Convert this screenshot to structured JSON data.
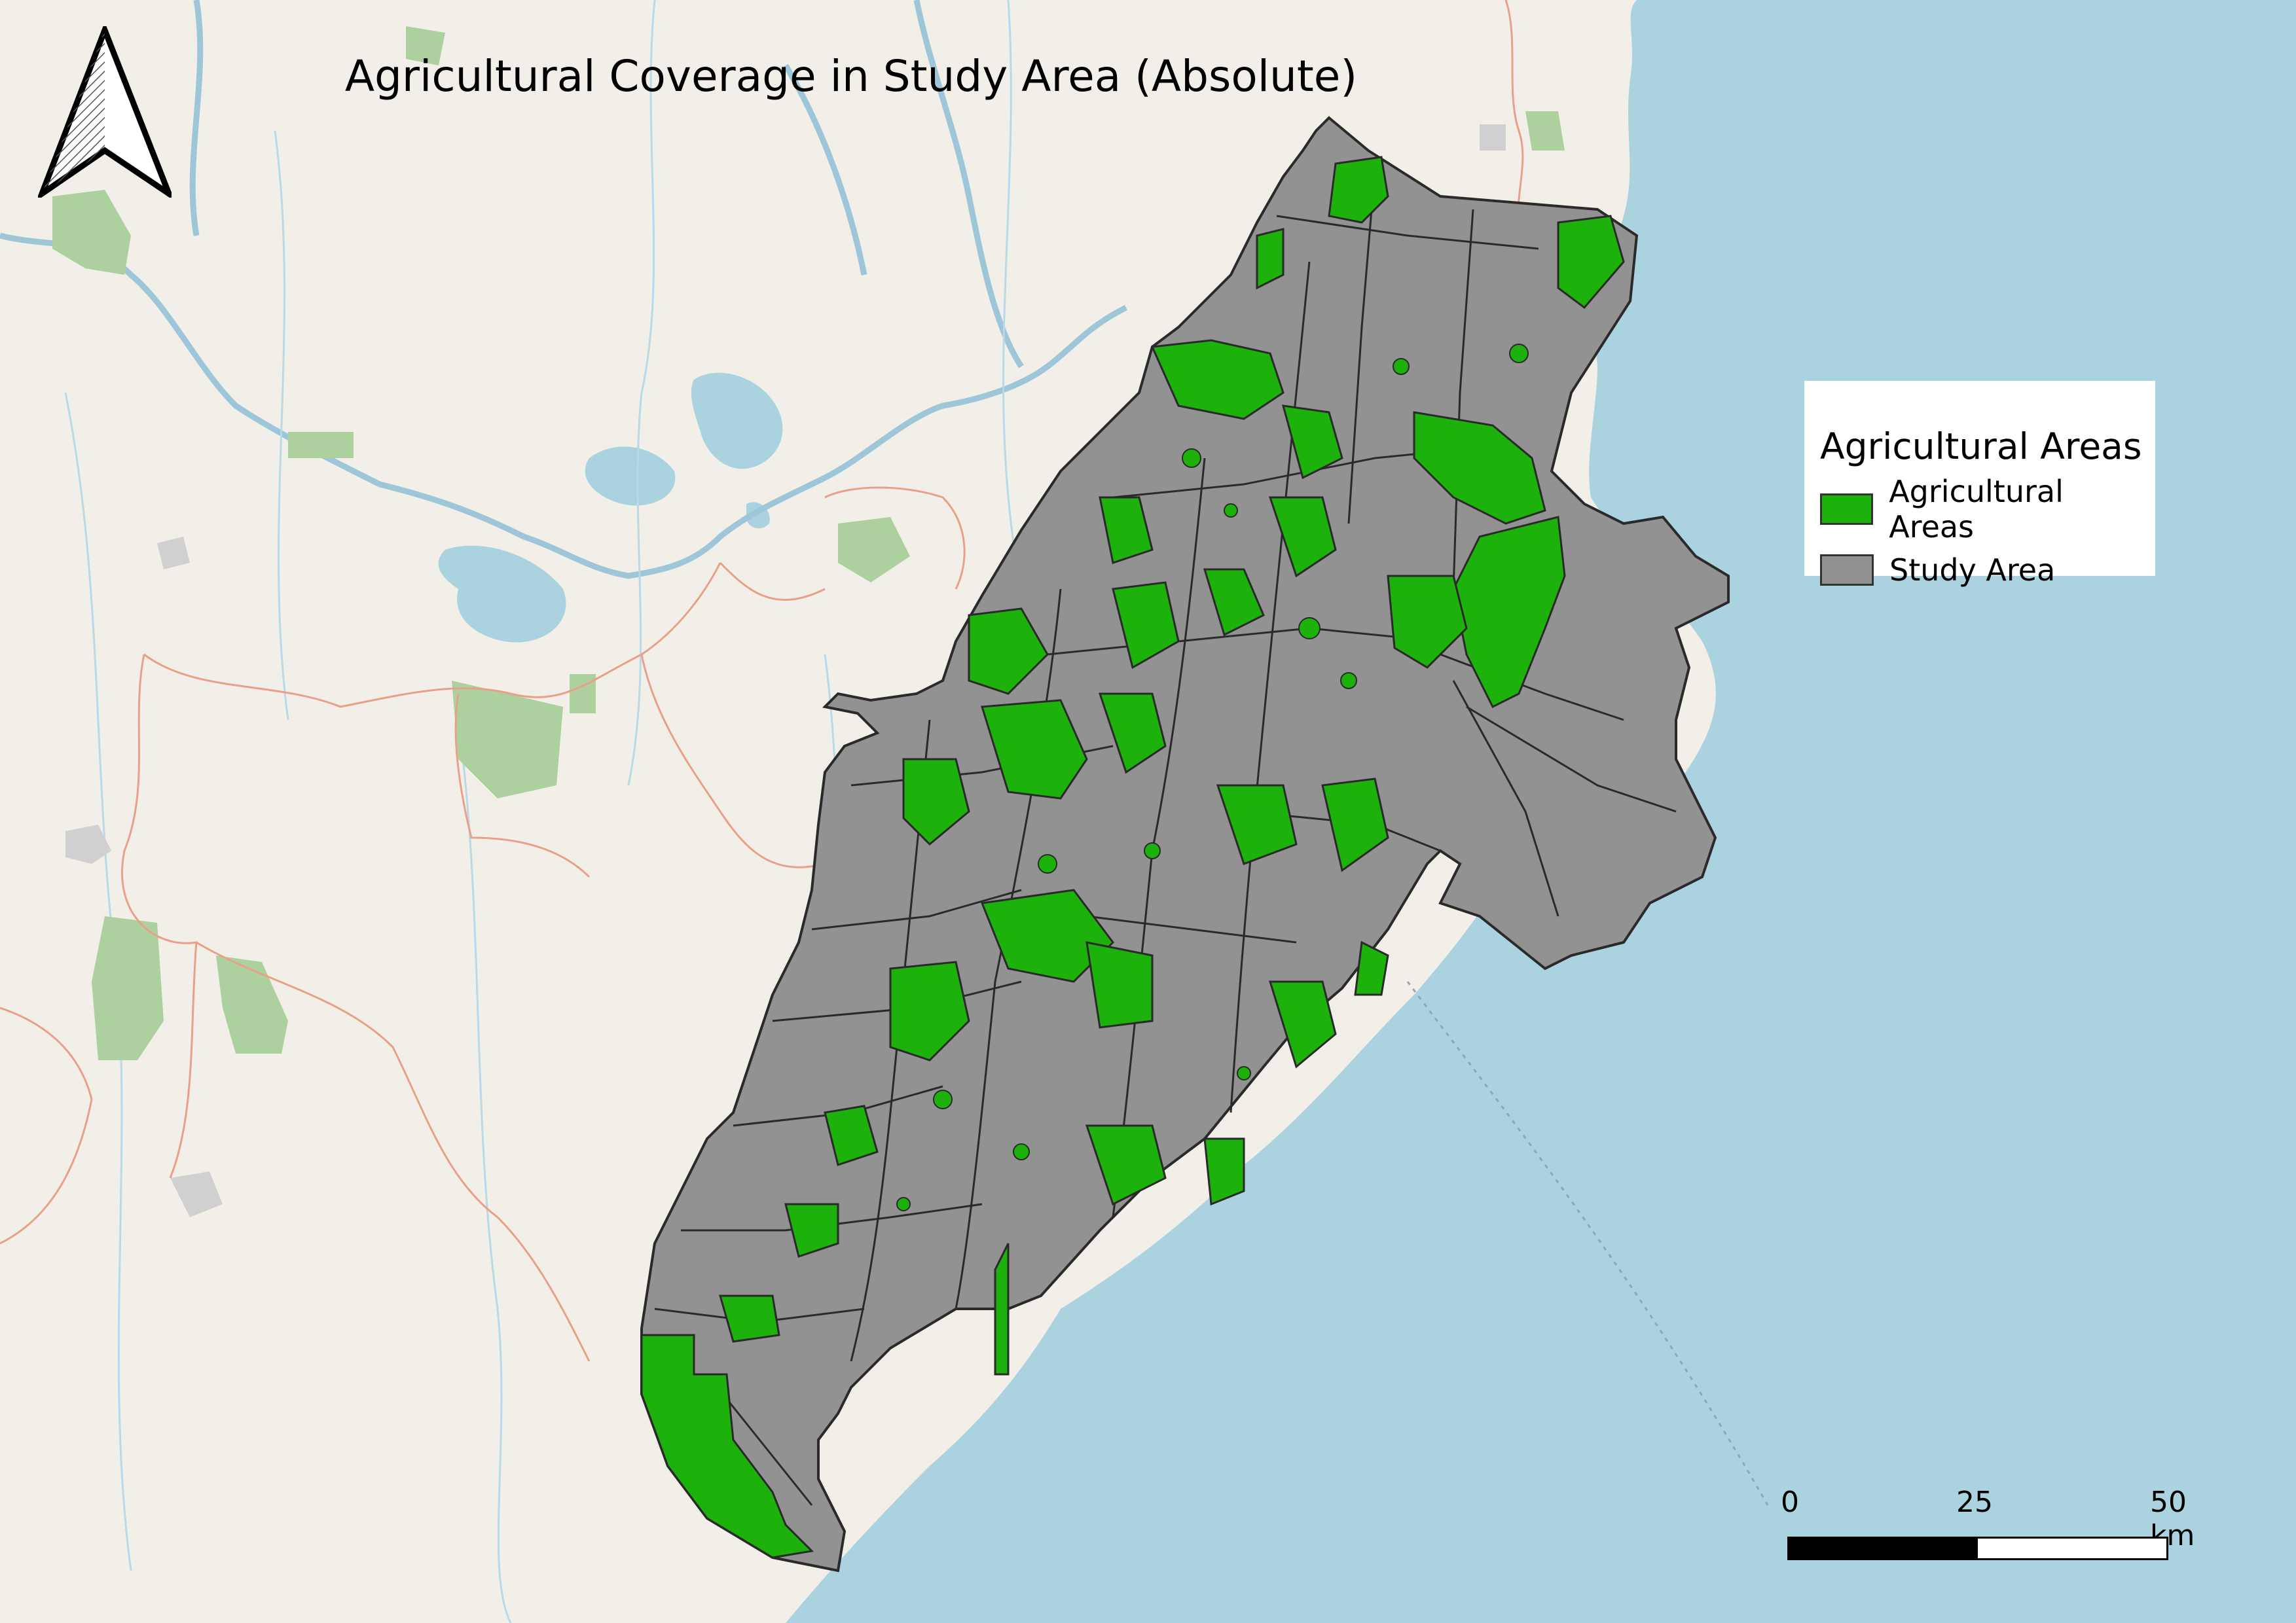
{
  "map": {
    "title": "Agricultural Coverage in Study Area (Absolute)",
    "colors": {
      "land": "#f2efe9",
      "water": "#aad3df",
      "agricultural": "#1db10c",
      "study_area": "#929292",
      "study_area_outline": "#2a2a2a",
      "forest": "#add19e",
      "admin_boundary": "#e8a089",
      "river": "#9dc6d8"
    }
  },
  "legend": {
    "title": "Agricultural Areas",
    "items": [
      {
        "label": "Agricultural Areas",
        "color": "#1db10c",
        "outline": "#333333"
      },
      {
        "label": "Study Area",
        "color": "#929292",
        "outline": "#333333"
      }
    ]
  },
  "scale_bar": {
    "labels": [
      "0",
      "25",
      "50 km"
    ],
    "segments": [
      "#000000",
      "#ffffff"
    ]
  },
  "north_arrow": {
    "icon": "north-arrow-icon"
  }
}
